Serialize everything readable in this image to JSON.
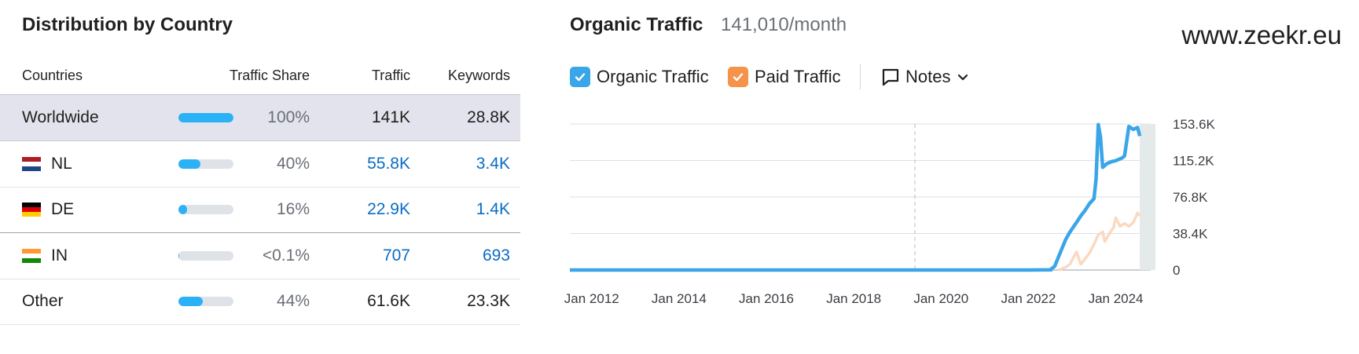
{
  "left": {
    "title": "Distribution by Country",
    "headers": {
      "countries": "Countries",
      "share": "Traffic Share",
      "traffic": "Traffic",
      "keywords": "Keywords"
    },
    "rows": [
      {
        "name": "Worldwide",
        "share_label": "100%",
        "share": 1.0,
        "traffic": "141K",
        "keywords": "28.8K",
        "flag": null
      },
      {
        "name": "NL",
        "share_label": "40%",
        "share": 0.4,
        "traffic": "55.8K",
        "keywords": "3.4K",
        "flag": [
          "#ae1c28",
          "#ffffff",
          "#21468b"
        ]
      },
      {
        "name": "DE",
        "share_label": "16%",
        "share": 0.16,
        "traffic": "22.9K",
        "keywords": "1.4K",
        "flag": [
          "#000000",
          "#dd0000",
          "#ffce00"
        ]
      },
      {
        "name": "IN",
        "share_label": "<0.1%",
        "share": 0.001,
        "traffic": "707",
        "keywords": "693",
        "flag": [
          "#ff9933",
          "#ffffff",
          "#138808"
        ]
      },
      {
        "name": "Other",
        "share_label": "44%",
        "share": 0.44,
        "traffic": "61.6K",
        "keywords": "23.3K",
        "flag": null
      }
    ]
  },
  "right": {
    "title": "Organic Traffic",
    "subtitle": "141,010/month",
    "domain": "www.zeekr.eu",
    "legend": {
      "organic_label": "Organic Traffic",
      "paid_label": "Paid Traffic",
      "notes_label": "Notes",
      "organic_color": "#3aa5e8",
      "paid_color": "#f5934a"
    }
  },
  "chart_data": {
    "type": "line",
    "x_ticks": [
      "Jan 2012",
      "Jan 2014",
      "Jan 2016",
      "Jan 2018",
      "Jan 2020",
      "Jan 2022",
      "Jan 2024"
    ],
    "y_ticks": [
      "0",
      "38.4K",
      "76.8K",
      "115.2K",
      "153.6K"
    ],
    "ylim": [
      0,
      153600
    ],
    "xlim": [
      2011.5,
      2024.8
    ],
    "grid": true,
    "series": [
      {
        "name": "Organic Traffic",
        "color": "#3aa5e8",
        "x": [
          2011.5,
          2021.0,
          2022.0,
          2022.5,
          2022.6,
          2022.7,
          2022.85,
          2022.95,
          2023.1,
          2023.2,
          2023.3,
          2023.4,
          2023.5,
          2023.55,
          2023.6,
          2023.65,
          2023.7,
          2023.8,
          2023.9,
          2024.0,
          2024.1,
          2024.15,
          2024.2,
          2024.3,
          2024.4,
          2024.5,
          2024.55
        ],
        "y": [
          0,
          0,
          0,
          200,
          4000,
          15000,
          32000,
          40000,
          50000,
          57000,
          63000,
          70000,
          75000,
          96000,
          153000,
          140000,
          108000,
          112000,
          114000,
          115000,
          117000,
          118000,
          120000,
          151000,
          148000,
          150000,
          141000
        ]
      },
      {
        "name": "Paid Traffic",
        "color": "#f5934a",
        "x": [
          2022.7,
          2022.85,
          2022.95,
          2023.05,
          2023.1,
          2023.2,
          2023.3,
          2023.4,
          2023.5,
          2023.6,
          2023.7,
          2023.75,
          2023.85,
          2023.95,
          2024.0,
          2024.1,
          2024.2,
          2024.3,
          2024.4,
          2024.5,
          2024.55
        ],
        "y": [
          0,
          3000,
          6000,
          15000,
          19000,
          6000,
          12000,
          18000,
          27000,
          37000,
          40000,
          30000,
          38000,
          45000,
          55000,
          46000,
          49000,
          46000,
          50000,
          60000,
          57000
        ]
      }
    ],
    "annotation_x": 2019.4
  }
}
